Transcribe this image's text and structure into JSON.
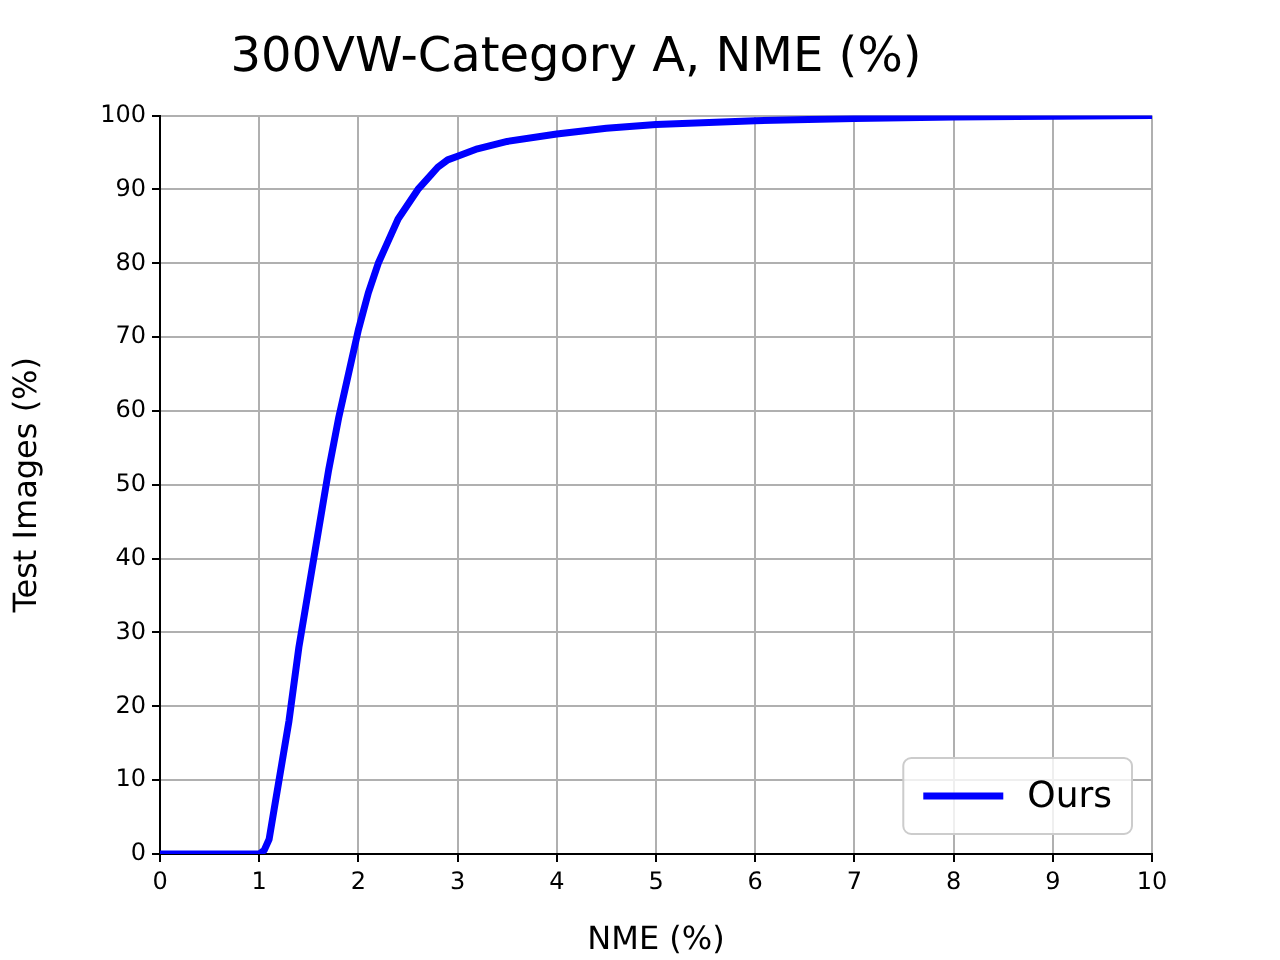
{
  "chart_data": {
    "type": "line",
    "title": "300VW-Category A, NME (%)",
    "xlabel": "NME (%)",
    "ylabel": "Test Images (%)",
    "x": [
      0,
      1,
      1.05,
      1.1,
      1.15,
      1.2,
      1.3,
      1.4,
      1.5,
      1.6,
      1.7,
      1.8,
      1.9,
      2.0,
      2.1,
      2.2,
      2.3,
      2.4,
      2.5,
      2.6,
      2.7,
      2.8,
      2.9,
      3.0,
      3.2,
      3.5,
      4,
      4.5,
      5,
      6,
      7,
      8,
      9,
      10
    ],
    "series": [
      {
        "name": "Ours",
        "color": "#0000ff",
        "values": [
          0,
          0,
          0.5,
          2,
          6,
          10,
          18,
          28,
          36,
          44,
          52,
          59,
          65,
          71,
          76,
          80,
          83,
          86,
          88,
          90,
          91.5,
          93,
          94,
          94.5,
          95.5,
          96.5,
          97.5,
          98.3,
          98.8,
          99.3,
          99.6,
          99.8,
          99.9,
          100
        ]
      }
    ],
    "xlim": [
      0,
      10
    ],
    "ylim": [
      0,
      100
    ],
    "xticks": [
      0,
      1,
      2,
      3,
      4,
      5,
      6,
      7,
      8,
      9,
      10
    ],
    "yticks": [
      0,
      10,
      20,
      30,
      40,
      50,
      60,
      70,
      80,
      90,
      100
    ],
    "grid": true,
    "legend": "bottom right",
    "line_style": "solid",
    "marker": "none"
  }
}
